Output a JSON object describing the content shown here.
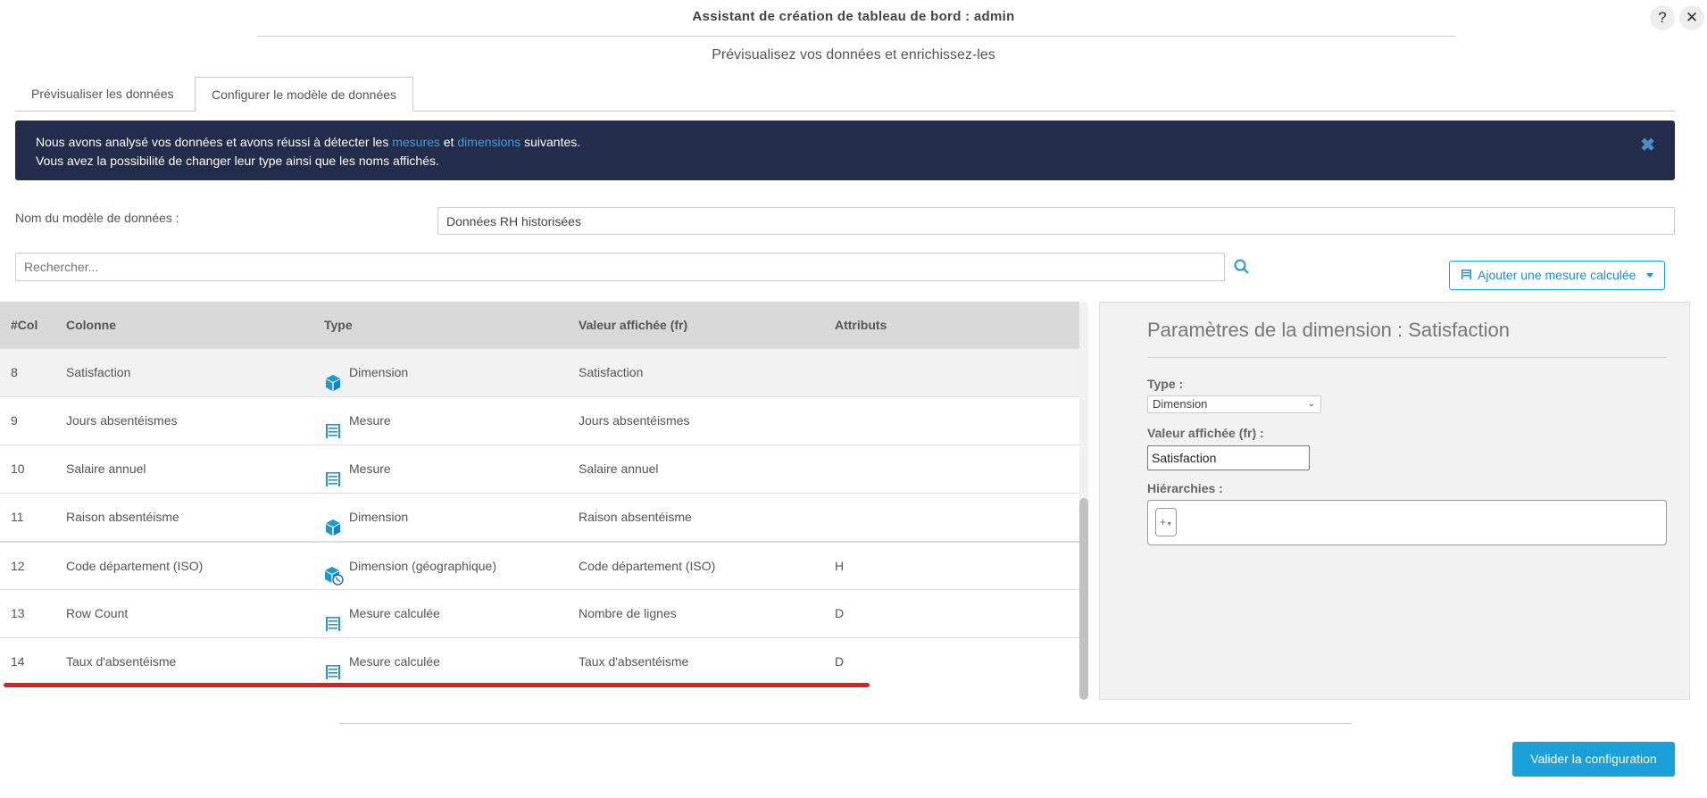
{
  "window": {
    "title": "Assistant de création de tableau de bord : admin",
    "help_label": "?",
    "close_label": "✕"
  },
  "subtitle": "Prévisualisez vos données et enrichissez-les",
  "tabs": [
    {
      "label": "Prévisualiser les données",
      "active": false
    },
    {
      "label": "Configurer le modèle de données",
      "active": true
    }
  ],
  "banner": {
    "line1_a": "Nous avons analysé vos données et avons réussi à détecter les ",
    "link1": "mesures",
    "line1_b": " et ",
    "link2": "dimensions",
    "line1_c": " suivantes.",
    "line2": "Vous avez la possibilité de changer leur type ainsi que les noms affichés.",
    "close": "✖"
  },
  "model": {
    "label": "Nom du modèle de données :",
    "value": "Données RH historisées"
  },
  "search": {
    "placeholder": "Rechercher...",
    "icon": "search-icon"
  },
  "add_button": {
    "label": "Ajouter une mesure calculée"
  },
  "table": {
    "headers": [
      "#Col",
      "Colonne",
      "Type",
      "Valeur affichée (fr)",
      "Attributs"
    ],
    "rows": [
      {
        "col": "8",
        "name": "Satisfaction",
        "type": "Dimension",
        "icon": "cube",
        "display": "Satisfaction",
        "attr": "",
        "selected": true
      },
      {
        "col": "9",
        "name": "Jours absentéismes",
        "type": "Mesure",
        "icon": "abacus",
        "display": "Jours absentéismes",
        "attr": ""
      },
      {
        "col": "10",
        "name": "Salaire annuel",
        "type": "Mesure",
        "icon": "abacus",
        "display": "Salaire annuel",
        "attr": ""
      },
      {
        "col": "11",
        "name": "Raison absentéisme",
        "type": "Dimension",
        "icon": "cube",
        "display": "Raison absentéisme",
        "attr": ""
      },
      {
        "col": "12",
        "name": "Code département (ISO)",
        "type": "Dimension (géographique)",
        "icon": "cube-globe",
        "display": "Code département (ISO)",
        "attr": "H"
      },
      {
        "col": "13",
        "name": "Row Count",
        "type": "Mesure calculée",
        "icon": "abacus",
        "display": "Nombre de lignes",
        "attr": "D"
      },
      {
        "col": "14",
        "name": "Taux d'absentéisme",
        "type": "Mesure calculée",
        "icon": "abacus",
        "display": "Taux d'absentéisme",
        "attr": "D"
      }
    ]
  },
  "panel": {
    "title": "Paramètres de la dimension : Satisfaction",
    "type_label": "Type :",
    "type_value": "Dimension",
    "display_label": "Valeur affichée (fr) :",
    "display_value": "Satisfaction",
    "hier_label": "Hiérarchies :",
    "hier_add": "+"
  },
  "validate_button": "Valider la configuration",
  "colors": {
    "accent": "#1aa0d8",
    "banner": "#232c4b",
    "highlight": "#e02020"
  }
}
